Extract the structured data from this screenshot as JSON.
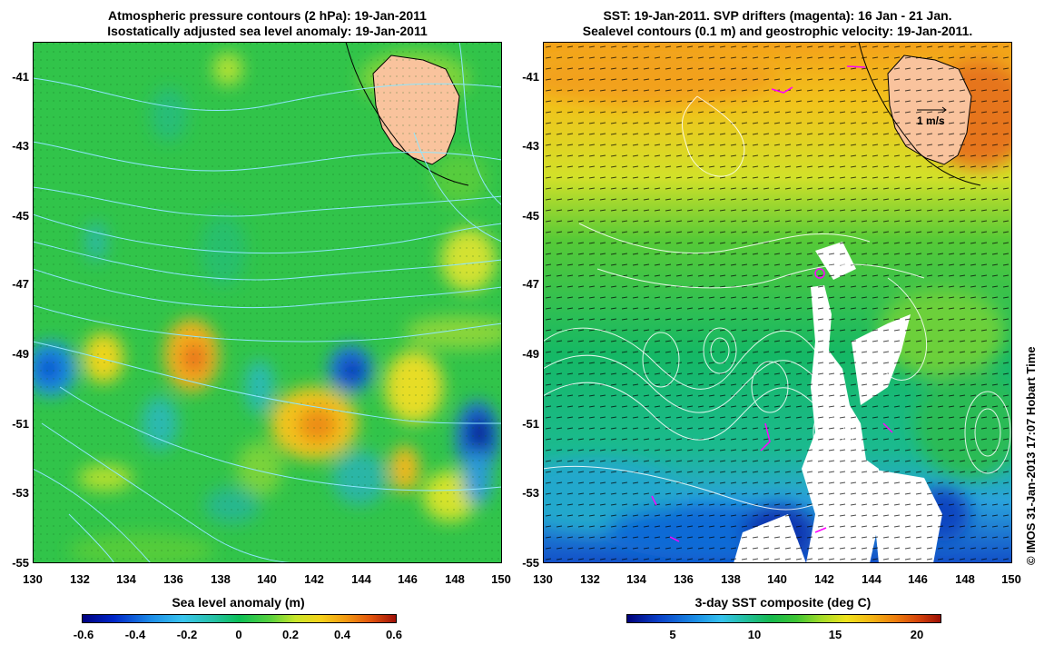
{
  "left_panel": {
    "title_line1": "Atmospheric pressure contours (2 hPa): 19-Jan-2011",
    "title_line2": "Isostatically adjusted sea level anomaly: 19-Jan-2011",
    "colorbar_title": "Sea level anomaly (m)",
    "colorbar_ticks": [
      "-0.6",
      "-0.4",
      "-0.2",
      "0",
      "0.2",
      "0.4",
      "0.6"
    ]
  },
  "right_panel": {
    "title_line1": "SST: 19-Jan-2011. SVP drifters (magenta): 16 Jan - 21 Jan.",
    "title_line2": "Sealevel contours (0.1 m) and geostrophic velocity: 19-Jan-2011.",
    "colorbar_title": "3-day SST composite (deg C)",
    "colorbar_ticks": [
      "5",
      "10",
      "15",
      "20"
    ],
    "velocity_scale_label": "1 m/s"
  },
  "axes": {
    "lat_ticks": [
      "-41",
      "-43",
      "-45",
      "-47",
      "-49",
      "-51",
      "-53",
      "-55"
    ],
    "lon_ticks": [
      "130",
      "132",
      "134",
      "136",
      "138",
      "140",
      "142",
      "144",
      "146",
      "148",
      "150"
    ]
  },
  "credit": "© IMOS 31-Jan-2013 17:07 Hobart Time",
  "colors": {
    "land": "#f9c39d",
    "ocean_green": "#2ec24a",
    "contour_pressure": "#80e8ff",
    "contour_sealevel": "#ffffff",
    "drifter": "#ff00ff"
  }
}
